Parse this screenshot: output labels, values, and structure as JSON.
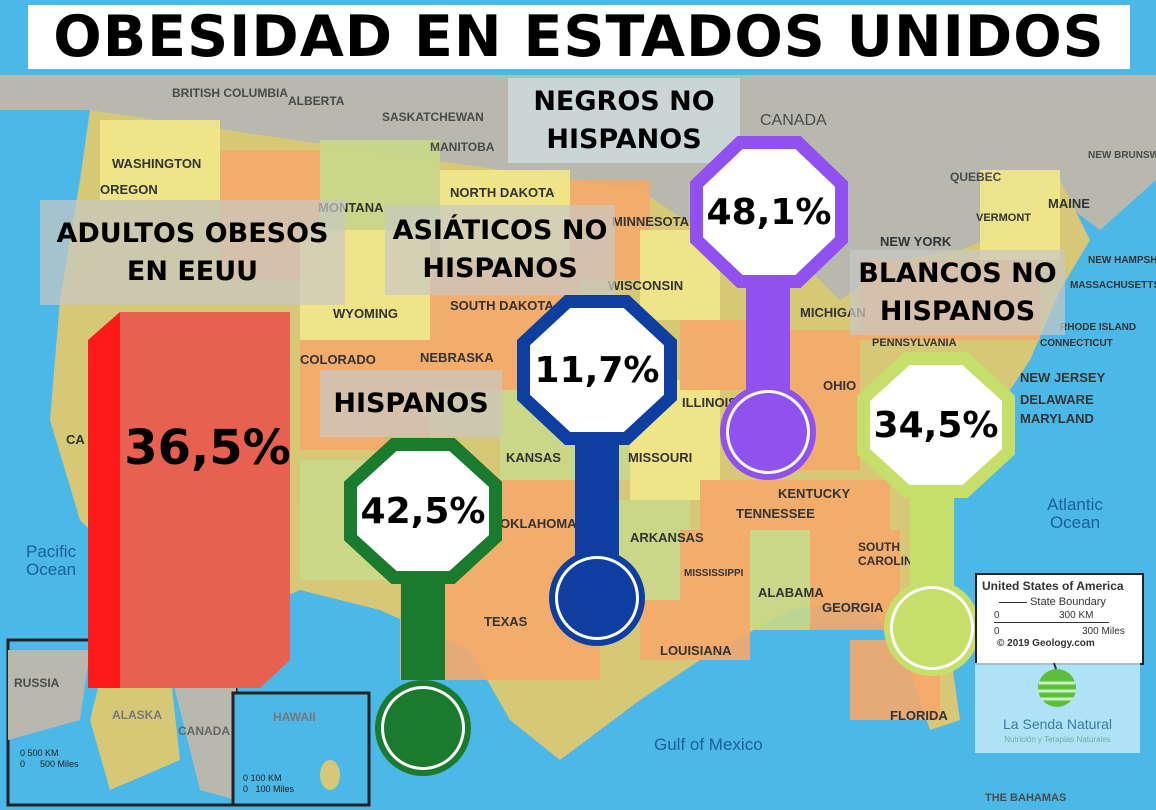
{
  "title": "OBESIDAD EN ESTADOS UNIDOS",
  "colors": {
    "sea": "#4cb8e8",
    "canada": "#b8b8ae",
    "adult_bar_front": "#e8604f",
    "adult_bar_side": "#ff1a1a",
    "hispanos": "#1a7a2e",
    "asiaticos": "#0e3fa0",
    "negros": "#9150f0",
    "blancos": "#c5df6a"
  },
  "adults": {
    "label_line1": "ADULTOS OBESOS",
    "label_line2": "EN EEUU",
    "value": "36,5%",
    "percent": 36.5
  },
  "groups": [
    {
      "id": "hispanos",
      "label_line1": "HISPANOS",
      "label_line2": "",
      "value": "42,5%",
      "percent": 42.5
    },
    {
      "id": "asiaticos",
      "label_line1": "ASIÁTICOS NO",
      "label_line2": "HISPANOS",
      "value": "11,7%",
      "percent": 11.7
    },
    {
      "id": "negros",
      "label_line1": "NEGROS NO",
      "label_line2": "HISPANOS",
      "value": "48,1%",
      "percent": 48.1
    },
    {
      "id": "blancos",
      "label_line1": "BLANCOS NO",
      "label_line2": "HISPANOS",
      "value": "34,5%",
      "percent": 34.5
    }
  ],
  "map_labels": [
    "BRITISH COLUMBIA",
    "ALBERTA",
    "SASKATCHEWAN",
    "MANITOBA",
    "CANADA",
    "QUEBEC",
    "NEW BRUNSWICK",
    "WASHINGTON",
    "MONTANA",
    "NORTH DAKOTA",
    "MINNESOTA",
    "WISCONSIN",
    "MICHIGAN",
    "VERMONT",
    "MAINE",
    "NEW HAMPSHIRE",
    "MASSACHUSETTS",
    "OREGON",
    "WYOMING",
    "SOUTH DAKOTA",
    "NEW YORK",
    "RHODE ISLAND",
    "CONNECTICUT",
    "NEBRASKA",
    "PENNSYLVANIA",
    "NEW JERSEY",
    "OHIO",
    "ILLINOIS",
    "DELAWARE",
    "MARYLAND",
    "COLORADO",
    "KANSAS",
    "MISSOURI",
    "KENTUCKY",
    "CA",
    "OKLAHOMA",
    "ARKANSAS",
    "TENNESSEE",
    "SOUTH CAROLINA",
    "MISSISSIPPI",
    "ALABAMA",
    "GEORGIA",
    "TEXAS",
    "LOUISIANA",
    "FLORIDA",
    "Pacific Ocean",
    "Atlantic Ocean",
    "Gulf of Mexico",
    "RUSSIA",
    "ALASKA",
    "CANADA",
    "HAWAII",
    "THE BAHAMAS"
  ],
  "legend": {
    "title": "United States of America",
    "boundary": "State Boundary",
    "km": "300 KM",
    "miles": "300 Miles",
    "zero": "0",
    "credit": "© 2019 Geology.com"
  },
  "alaska_scale": {
    "km": "500 KM",
    "miles": "500 Miles",
    "zero": "0"
  },
  "hawaii_scale": {
    "km": "100 KM",
    "miles": "100 Miles",
    "zero": "0"
  },
  "logo": {
    "name": "La Senda Natural",
    "tagline": "Nutrición y Terapias Naturales"
  }
}
